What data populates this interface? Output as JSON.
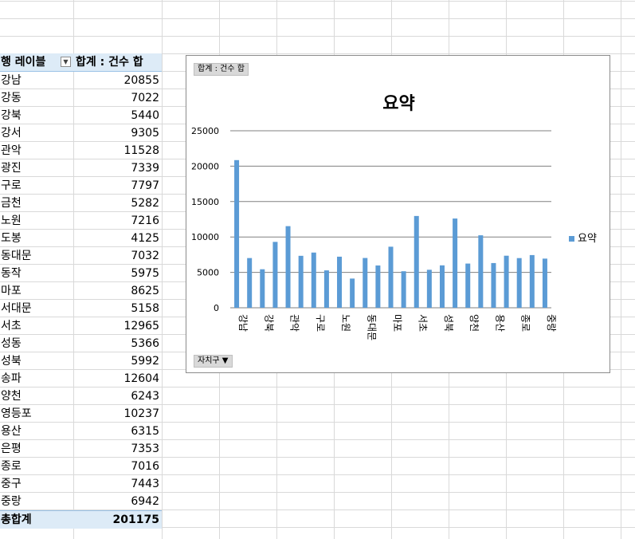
{
  "pivot": {
    "row_label_header": "행 레이블",
    "sum_header": "합계 : 건수 합",
    "rows": [
      {
        "label": "강남",
        "value": "20855"
      },
      {
        "label": "강동",
        "value": "7022"
      },
      {
        "label": "강북",
        "value": "5440"
      },
      {
        "label": "강서",
        "value": "9305"
      },
      {
        "label": "관악",
        "value": "11528"
      },
      {
        "label": "광진",
        "value": "7339"
      },
      {
        "label": "구로",
        "value": "7797"
      },
      {
        "label": "금천",
        "value": "5282"
      },
      {
        "label": "노원",
        "value": "7216"
      },
      {
        "label": "도봉",
        "value": "4125"
      },
      {
        "label": "동대문",
        "value": "7032"
      },
      {
        "label": "동작",
        "value": "5975"
      },
      {
        "label": "마포",
        "value": "8625"
      },
      {
        "label": "서대문",
        "value": "5158"
      },
      {
        "label": "서초",
        "value": "12965"
      },
      {
        "label": "성동",
        "value": "5366"
      },
      {
        "label": "성북",
        "value": "5992"
      },
      {
        "label": "송파",
        "value": "12604"
      },
      {
        "label": "양천",
        "value": "6243"
      },
      {
        "label": "영등포",
        "value": "10237"
      },
      {
        "label": "용산",
        "value": "6315"
      },
      {
        "label": "은평",
        "value": "7353"
      },
      {
        "label": "종로",
        "value": "7016"
      },
      {
        "label": "중구",
        "value": "7443"
      },
      {
        "label": "중랑",
        "value": "6942"
      }
    ],
    "total_label": "총합계",
    "total_value": "201175",
    "filter_icon": "dropdown-arrow-icon"
  },
  "chart_panel": {
    "value_field_button": "합계 : 건수 합",
    "axis_field_button": "자치구",
    "axis_field_icon": "dropdown-arrow-icon"
  },
  "chart_data": {
    "type": "bar",
    "title": "요약",
    "categories": [
      "강남",
      "강동",
      "강북",
      "강서",
      "관악",
      "광진",
      "구로",
      "금천",
      "노원",
      "도봉",
      "동대문",
      "동작",
      "마포",
      "서대문",
      "서초",
      "성동",
      "성북",
      "송파",
      "양천",
      "영등포",
      "용산",
      "은평",
      "종로",
      "중구",
      "중랑"
    ],
    "tick_labels": [
      "강남",
      "강북",
      "관악",
      "구로",
      "노원",
      "동대문",
      "마포",
      "서초",
      "성북",
      "양천",
      "용산",
      "종로",
      "중랑"
    ],
    "series": [
      {
        "name": "요약",
        "values": [
          20855,
          7022,
          5440,
          9305,
          11528,
          7339,
          7797,
          5282,
          7216,
          4125,
          7032,
          5975,
          8625,
          5158,
          12965,
          5366,
          5992,
          12604,
          6243,
          10237,
          6315,
          7353,
          7016,
          7443,
          6942
        ]
      }
    ],
    "ylim": [
      0,
      25000
    ],
    "yticks": [
      0,
      5000,
      10000,
      15000,
      20000,
      25000
    ],
    "grid": true,
    "legend_position": "right",
    "bar_color": "#5b9bd5"
  }
}
